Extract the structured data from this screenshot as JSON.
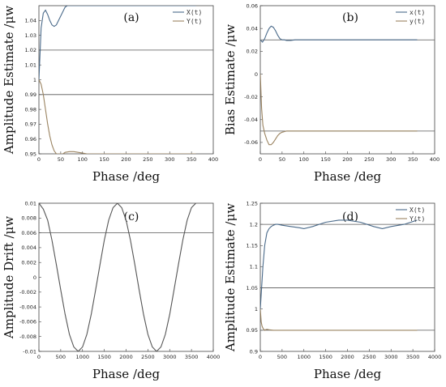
{
  "colors": {
    "x_series": "#4a6a8a",
    "y_series": "#9a8360",
    "grid": "#555555",
    "frame": "#444444"
  },
  "chart_data": [
    {
      "type": "line",
      "panel_label": "(a)",
      "xlabel": "Phase /deg",
      "ylabel": "Amplitude Estimate /μw",
      "xlim": [
        0,
        400
      ],
      "ylim": [
        0.95,
        1.05
      ],
      "xticks": [
        "0",
        "50",
        "100",
        "150",
        "200",
        "250",
        "300",
        "350",
        "400"
      ],
      "yticks": [
        "0.95",
        "0.96",
        "0.97",
        "0.98",
        "0.99",
        "1",
        "1.01",
        "1.02",
        "1.03",
        "1.04"
      ],
      "grid_y": [
        0.99,
        1.02
      ],
      "legend": "top-right",
      "series": [
        {
          "name": "X(t)",
          "x": [
            0,
            5,
            10,
            15,
            20,
            25,
            30,
            35,
            40,
            45,
            50,
            55,
            60,
            65,
            70,
            75,
            80,
            85,
            90,
            100,
            360
          ],
          "y": [
            1.0,
            1.035,
            1.045,
            1.047,
            1.044,
            1.04,
            1.037,
            1.036,
            1.037,
            1.04,
            1.043,
            1.046,
            1.049,
            1.05,
            1.05,
            1.05,
            1.05,
            1.05,
            1.05,
            1.05,
            1.05
          ]
        },
        {
          "name": "Y(t)",
          "x": [
            0,
            5,
            10,
            15,
            20,
            25,
            30,
            35,
            40,
            45,
            50,
            55,
            60,
            70,
            80,
            90,
            100,
            110,
            120,
            360
          ],
          "y": [
            1.0,
            0.997,
            0.99,
            0.98,
            0.97,
            0.962,
            0.956,
            0.952,
            0.95,
            0.95,
            0.95,
            0.95,
            0.951,
            0.9515,
            0.9515,
            0.951,
            0.9505,
            0.95,
            0.95,
            0.95
          ]
        }
      ]
    },
    {
      "type": "line",
      "panel_label": "(b)",
      "xlabel": "Phase /deg",
      "ylabel": "Bias Estimate /μw",
      "xlim": [
        0,
        400
      ],
      "ylim": [
        -0.07,
        0.06
      ],
      "xticks": [
        "0",
        "50",
        "100",
        "150",
        "200",
        "250",
        "300",
        "350",
        "400"
      ],
      "yticks": [
        "-0.06",
        "-0.04",
        "-0.02",
        "0",
        "0.02",
        "0.04",
        "0.06"
      ],
      "grid_y": [
        0.03,
        -0.05
      ],
      "legend": "top-right",
      "series": [
        {
          "name": "x(t)",
          "x": [
            0,
            5,
            10,
            15,
            20,
            25,
            30,
            35,
            40,
            45,
            50,
            55,
            60,
            70,
            80,
            100,
            360
          ],
          "y": [
            0.03,
            0.028,
            0.031,
            0.036,
            0.04,
            0.042,
            0.041,
            0.038,
            0.034,
            0.031,
            0.03,
            0.03,
            0.0295,
            0.0295,
            0.03,
            0.03,
            0.03
          ]
        },
        {
          "name": "y(t)",
          "x": [
            0,
            3,
            6,
            10,
            15,
            20,
            25,
            30,
            35,
            40,
            45,
            50,
            55,
            60,
            70,
            80,
            90,
            100,
            360
          ],
          "y": [
            0.0,
            -0.03,
            -0.045,
            -0.052,
            -0.058,
            -0.062,
            -0.062,
            -0.06,
            -0.057,
            -0.054,
            -0.052,
            -0.051,
            -0.0505,
            -0.05,
            -0.05,
            -0.05,
            -0.05,
            -0.05,
            -0.05
          ]
        }
      ]
    },
    {
      "type": "line",
      "panel_label": "(c)",
      "xlabel": "Phase /deg",
      "ylabel": "Amplitude Drift /μw",
      "xlim": [
        0,
        4000
      ],
      "ylim": [
        -0.01,
        0.01
      ],
      "xticks": [
        "0",
        "500",
        "1000",
        "1500",
        "2000",
        "2500",
        "3000",
        "3500",
        "4000"
      ],
      "yticks": [
        "-0.01",
        "-0.008",
        "-0.006",
        "-0.004",
        "-0.002",
        "0",
        "0.002",
        "0.004",
        "0.006",
        "0.008",
        "0.01"
      ],
      "grid_y": [
        0.006
      ],
      "legend": "none",
      "series": [
        {
          "x": [
            0,
            100,
            200,
            300,
            400,
            500,
            600,
            700,
            800,
            900,
            1000,
            1100,
            1200,
            1300,
            1400,
            1500,
            1600,
            1700,
            1800,
            1900,
            2000,
            2100,
            2200,
            2300,
            2400,
            2500,
            2600,
            2700,
            2800,
            2900,
            3000,
            3100,
            3200,
            3300,
            3400,
            3500,
            3600
          ],
          "y": [
            0.01,
            0.0092,
            0.0077,
            0.005,
            0.0017,
            -0.0017,
            -0.005,
            -0.0077,
            -0.0094,
            -0.01,
            -0.0094,
            -0.0077,
            -0.005,
            -0.0017,
            0.0017,
            0.005,
            0.0077,
            0.0094,
            0.01,
            0.0094,
            0.0077,
            0.005,
            0.0017,
            -0.0017,
            -0.005,
            -0.0077,
            -0.0094,
            -0.01,
            -0.0094,
            -0.0077,
            -0.005,
            -0.0017,
            0.0017,
            0.005,
            0.0077,
            0.0094,
            0.01
          ]
        }
      ]
    },
    {
      "type": "line",
      "panel_label": "(d)",
      "xlabel": "Phase /deg",
      "ylabel": "Amplitude Estimate /μw",
      "xlim": [
        0,
        4000
      ],
      "ylim": [
        0.9,
        1.25
      ],
      "xticks": [
        "0",
        "500",
        "1000",
        "1500",
        "2000",
        "2500",
        "3000",
        "3500",
        "4000"
      ],
      "yticks": [
        "0.9",
        "0.95",
        "1",
        "1.05",
        "1.1",
        "1.15",
        "1.2",
        "1.25"
      ],
      "grid_y": [
        1.2,
        1.05,
        0.95
      ],
      "legend": "top-right",
      "series": [
        {
          "name": "X(t)",
          "x": [
            0,
            30,
            60,
            100,
            150,
            200,
            250,
            300,
            350,
            400,
            500,
            700,
            900,
            1000,
            1200,
            1500,
            1800,
            2000,
            2300,
            2600,
            2800,
            3000,
            3300,
            3600
          ],
          "y": [
            1.0,
            1.05,
            1.1,
            1.15,
            1.18,
            1.19,
            1.195,
            1.198,
            1.2,
            1.2,
            1.198,
            1.195,
            1.192,
            1.19,
            1.195,
            1.205,
            1.21,
            1.21,
            1.205,
            1.195,
            1.19,
            1.195,
            1.2,
            1.21
          ]
        },
        {
          "name": "Y(t)",
          "x": [
            0,
            20,
            40,
            60,
            80,
            100,
            120,
            150,
            200,
            300,
            400,
            3600
          ],
          "y": [
            1.0,
            0.97,
            0.96,
            0.955,
            0.952,
            0.95,
            0.951,
            0.952,
            0.951,
            0.95,
            0.95,
            0.95
          ]
        }
      ]
    }
  ]
}
